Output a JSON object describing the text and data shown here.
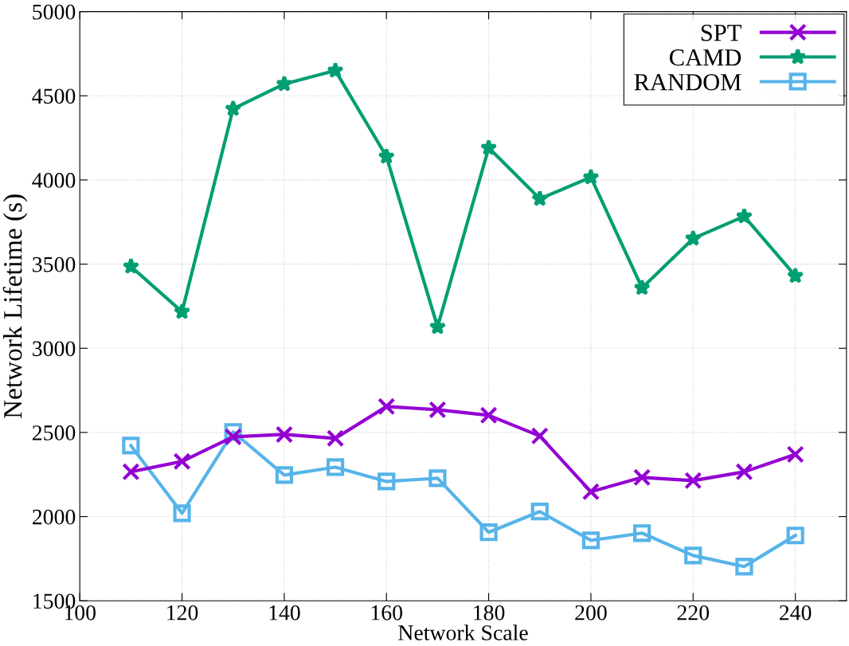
{
  "chart_data": {
    "type": "line",
    "xlabel": "Network Scale",
    "ylabel": "Network Lifetime (s)",
    "x": [
      110,
      120,
      130,
      140,
      150,
      160,
      170,
      180,
      190,
      200,
      210,
      220,
      230,
      240
    ],
    "series": [
      {
        "name": "SPT",
        "color": "#9400d3",
        "marker": "cross",
        "values": [
          2266,
          2328,
          2474,
          2488,
          2465,
          2654,
          2635,
          2602,
          2479,
          2148,
          2233,
          2214,
          2266,
          2370
        ]
      },
      {
        "name": "CAMD",
        "color": "#009e73",
        "marker": "star",
        "values": [
          3486,
          3217,
          4423,
          4570,
          4650,
          4139,
          3127,
          4191,
          3888,
          4016,
          3359,
          3652,
          3784,
          3430
        ]
      },
      {
        "name": "RANDOM",
        "color": "#56b4e9",
        "marker": "square",
        "values": [
          2422,
          2020,
          2503,
          2247,
          2294,
          2209,
          2228,
          1907,
          2030,
          1859,
          1902,
          1769,
          1703,
          1888
        ]
      }
    ],
    "xlim": [
      100,
      250
    ],
    "xticks": [
      100,
      120,
      140,
      160,
      180,
      200,
      220,
      240
    ],
    "ylim": [
      1500,
      5000
    ],
    "yticks": [
      1500,
      2000,
      2500,
      3000,
      3500,
      4000,
      4500,
      5000
    ],
    "grid": true,
    "legend": "top right",
    "line_style": "solid"
  }
}
